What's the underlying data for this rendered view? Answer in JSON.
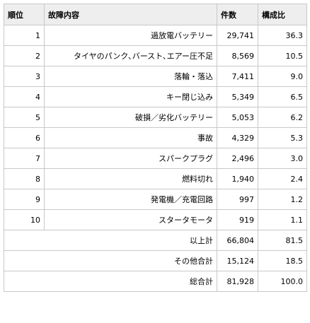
{
  "headers": [
    "順位",
    "故障内容",
    "件数",
    "構成比"
  ],
  "rows": [
    {
      "rank": "1",
      "cause": "過放電バッテリー",
      "count": "29,741",
      "ratio": "36.3"
    },
    {
      "rank": "2",
      "cause": "タイヤのパンク､バースト､エアー圧不足",
      "count": "8,569",
      "ratio": "10.5"
    },
    {
      "rank": "3",
      "cause": "落輪・落込",
      "count": "7,411",
      "ratio": "9.0"
    },
    {
      "rank": "4",
      "cause": "キー閉じ込み",
      "count": "5,349",
      "ratio": "6.5"
    },
    {
      "rank": "5",
      "cause": "破損／劣化バッテリー",
      "count": "5,053",
      "ratio": "6.2"
    },
    {
      "rank": "6",
      "cause": "事故",
      "count": "4,329",
      "ratio": "5.3"
    },
    {
      "rank": "7",
      "cause": "スパークプラグ",
      "count": "2,496",
      "ratio": "3.0"
    },
    {
      "rank": "8",
      "cause": "燃料切れ",
      "count": "1,940",
      "ratio": "2.4"
    },
    {
      "rank": "9",
      "cause": "発電機／充電回路",
      "count": "997",
      "ratio": "1.2"
    },
    {
      "rank": "10",
      "cause": "スタータモータ",
      "count": "919",
      "ratio": "1.1"
    }
  ],
  "totals": [
    {
      "label": "以上計",
      "count": "66,804",
      "ratio": "81.5"
    },
    {
      "label": "その他合計",
      "count": "15,124",
      "ratio": "18.5"
    },
    {
      "label": "総合計",
      "count": "81,928",
      "ratio": "100.0"
    }
  ]
}
